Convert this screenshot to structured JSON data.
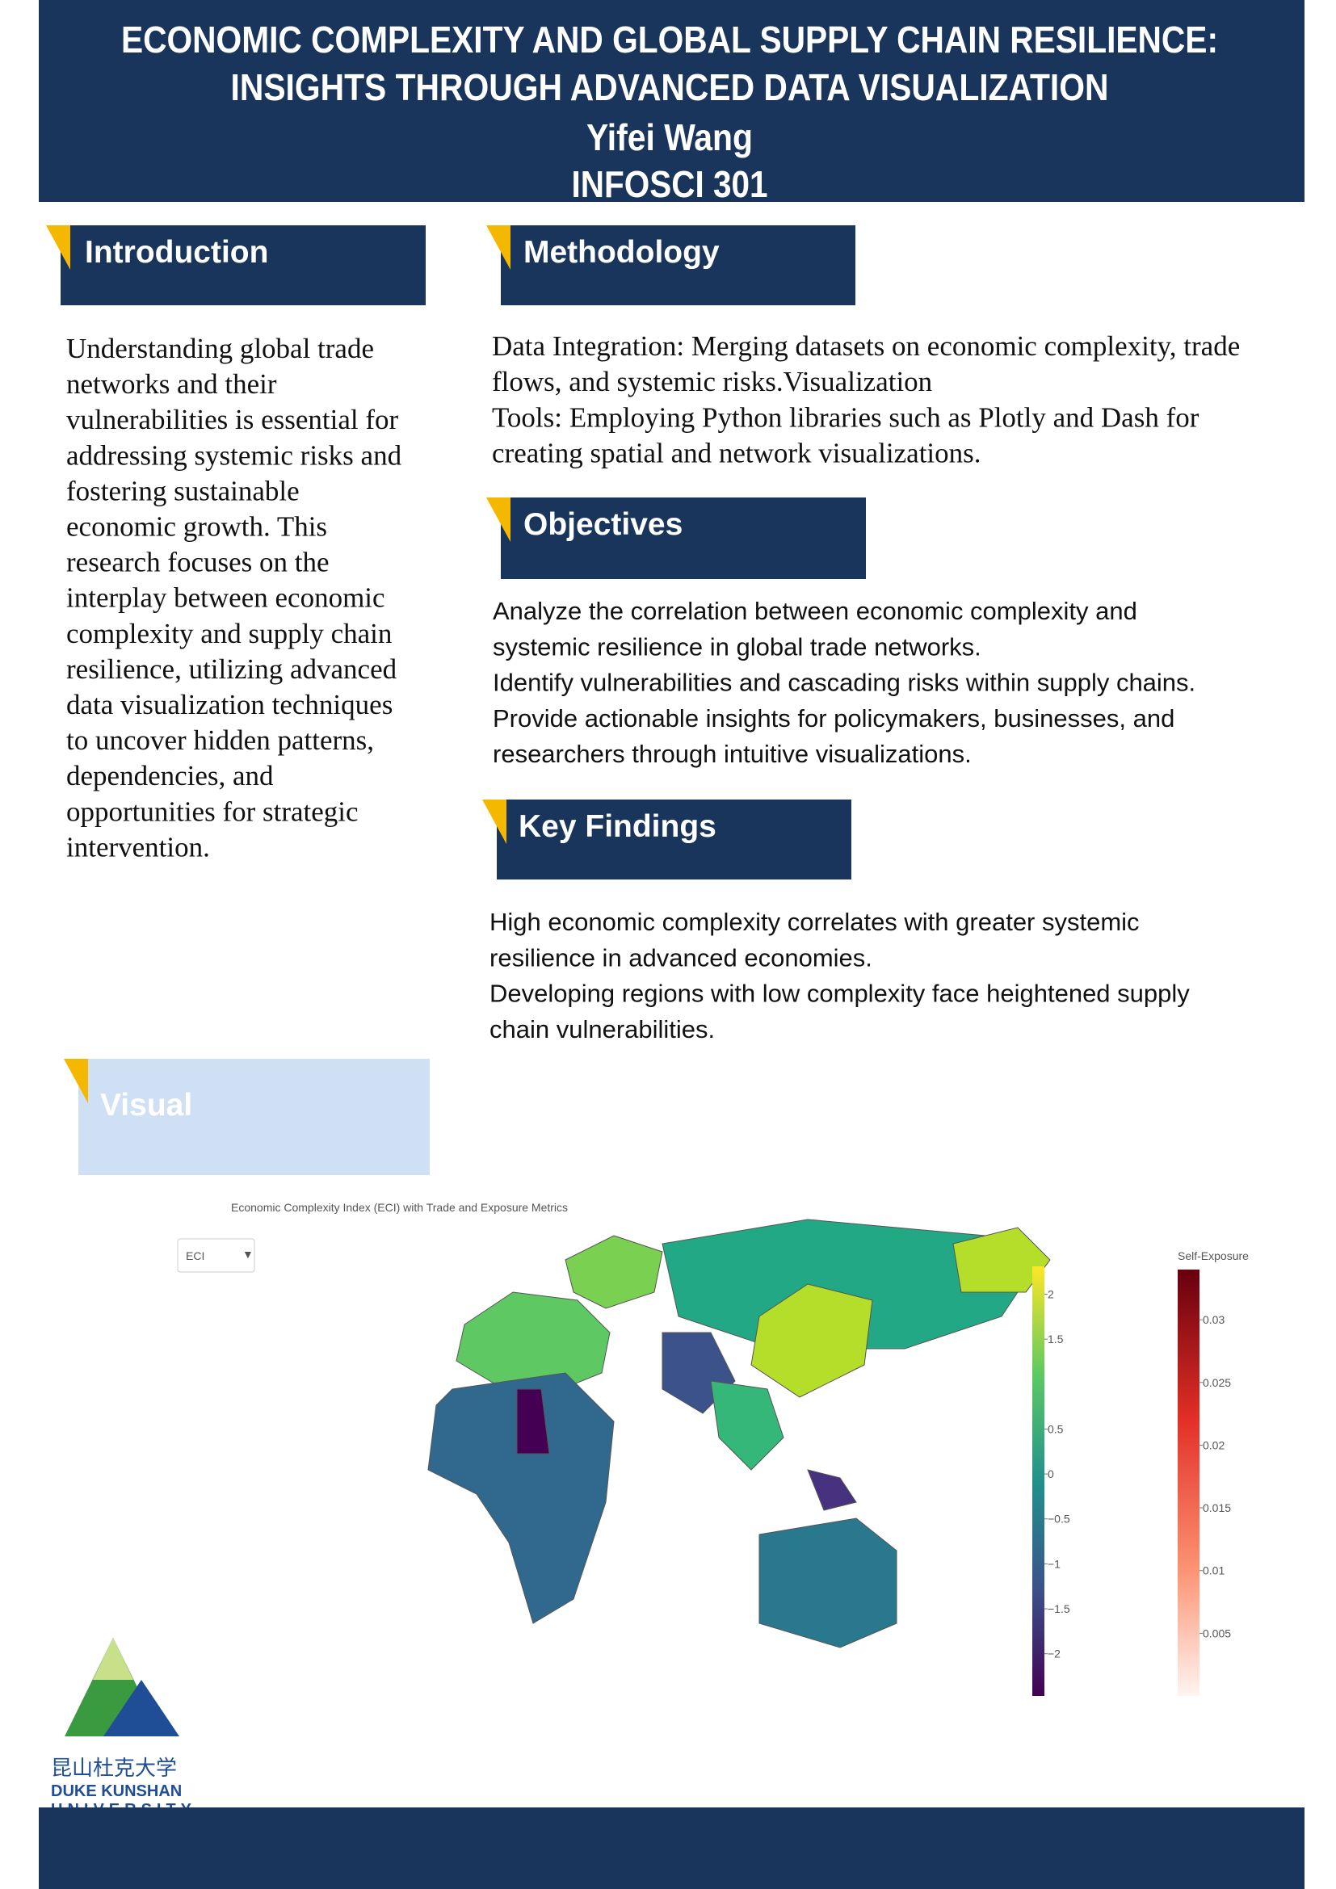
{
  "header": {
    "title_lines": [
      "ECONOMIC COMPLEXITY AND GLOBAL SUPPLY CHAIN RESILIENCE:",
      "INSIGHTS THROUGH ADVANCED DATA VISUALIZATION"
    ],
    "author": "Yifei Wang",
    "course": "INFOSCI 301"
  },
  "introduction": {
    "heading": "Introduction",
    "lines": [
      "Understanding global trade",
      "networks and their",
      "vulnerabilities is essential for",
      "addressing systemic risks and",
      "fostering sustainable",
      "economic growth. This",
      "research focuses on the",
      "interplay between economic",
      "complexity and supply chain",
      "resilience, utilizing advanced",
      "data visualization techniques",
      "to uncover hidden patterns,",
      "dependencies, and",
      "opportunities for strategic",
      "intervention."
    ]
  },
  "methodology": {
    "heading": "Methodology",
    "lines": [
      "Data Integration: Merging datasets on economic complexity, trade",
      "flows, and systemic risks.Visualization",
      "Tools: Employing Python libraries such as Plotly and Dash for",
      "creating spatial and network visualizations."
    ]
  },
  "objectives": {
    "heading": "Objectives",
    "lines": [
      "Analyze the correlation between economic complexity and",
      "systemic resilience in global trade networks.",
      "Identify vulnerabilities and cascading risks within supply chains.",
      "Provide actionable insights for policymakers, businesses, and",
      "researchers through intuitive visualizations."
    ]
  },
  "key_findings": {
    "heading": "Key Findings",
    "lines": [
      "High economic complexity correlates with greater systemic",
      "resilience in advanced economies.",
      "Developing regions with low complexity face heightened supply",
      "chain vulnerabilities."
    ]
  },
  "visual": {
    "heading": "Visual",
    "chart_title": "Economic Complexity Index (ECI) with Trade and Exposure Metrics",
    "dropdown": "ECI",
    "colorbars": [
      {
        "range": [
          -2.47,
          2.31
        ],
        "ticks": [
          2,
          1.5,
          0.5,
          0,
          {
            "value": -0.5,
            "label": "−0.5"
          },
          {
            "value": -1,
            "label": "−1"
          },
          {
            "value": -1.5,
            "label": "−1.5"
          },
          {
            "value": -2,
            "label": "−2"
          }
        ]
      },
      {
        "title": "Self-Exposure",
        "range": [
          0,
          0.034
        ],
        "ticks": [
          0.03,
          0.025,
          0.02,
          0.015,
          0.01,
          0.005
        ]
      }
    ]
  },
  "logo": {
    "chinese": "昆山杜克大学",
    "english_lines": [
      "DUKE KUNSHAN",
      "UNIVERSITY"
    ]
  }
}
